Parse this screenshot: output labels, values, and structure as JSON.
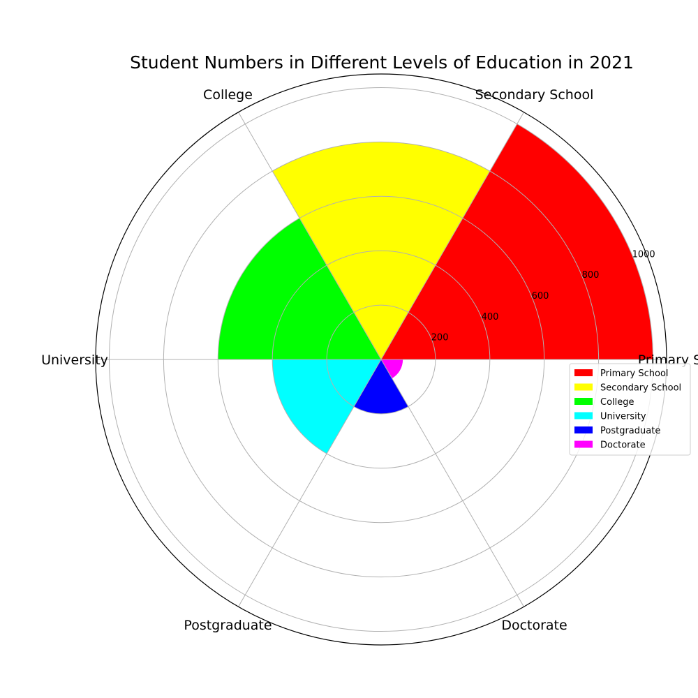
{
  "chart_data": {
    "type": "bar",
    "subtype": "polar-rose",
    "title": "Student Numbers in Different Levels of Education in 2021",
    "categories": [
      "Primary School",
      "Secondary School",
      "College",
      "University",
      "Postgraduate",
      "Doctorate"
    ],
    "values": [
      1000,
      800,
      600,
      400,
      200,
      80
    ],
    "colors": [
      "#ff0000",
      "#ffff00",
      "#00ff00",
      "#00ffff",
      "#0000ff",
      "#ff00ff"
    ],
    "radial_ticks": [
      200,
      400,
      600,
      800,
      1000
    ],
    "rmax": 1050,
    "grid": true,
    "legend": {
      "placement": "right",
      "entries": [
        "Primary School",
        "Secondary School",
        "College",
        "University",
        "Postgraduate",
        "Doctorate"
      ]
    }
  }
}
